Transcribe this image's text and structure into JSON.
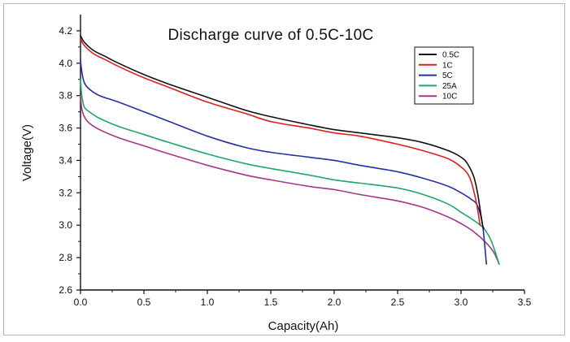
{
  "chart_data": {
    "type": "line",
    "title": "Discharge curve of 0.5C-10C",
    "xlabel": "Capacity(Ah)",
    "ylabel": "Voltage(V)",
    "xlim": [
      0,
      3.5
    ],
    "ylim": [
      2.6,
      4.3
    ],
    "xticks": [
      "0.0",
      "0.5",
      "1.0",
      "1.5",
      "2.0",
      "2.5",
      "3.0",
      "3.5"
    ],
    "yticks": [
      "2.6",
      "2.8",
      "3.0",
      "3.2",
      "3.4",
      "3.6",
      "3.8",
      "4.0",
      "4.2"
    ],
    "legend_position": "top-right",
    "series": [
      {
        "name": "0.5C",
        "color": "#111111",
        "x": [
          0,
          0.03,
          0.1,
          0.2,
          0.3,
          0.5,
          0.7,
          1.0,
          1.3,
          1.5,
          1.8,
          2.0,
          2.2,
          2.5,
          2.7,
          2.9,
          3.0,
          3.05,
          3.1,
          3.13,
          3.15,
          3.17,
          3.18
        ],
        "y": [
          4.17,
          4.13,
          4.08,
          4.04,
          4.0,
          3.93,
          3.87,
          3.79,
          3.71,
          3.67,
          3.62,
          3.59,
          3.57,
          3.54,
          3.51,
          3.46,
          3.42,
          3.38,
          3.3,
          3.2,
          3.1,
          3.0,
          2.98
        ]
      },
      {
        "name": "1C",
        "color": "#e01e1e",
        "x": [
          0,
          0.03,
          0.1,
          0.2,
          0.3,
          0.5,
          0.7,
          1.0,
          1.3,
          1.5,
          1.8,
          2.0,
          2.2,
          2.5,
          2.7,
          2.9,
          3.0,
          3.05,
          3.08,
          3.11,
          3.13,
          3.15
        ],
        "y": [
          4.15,
          4.11,
          4.06,
          4.02,
          3.98,
          3.91,
          3.85,
          3.76,
          3.69,
          3.64,
          3.6,
          3.57,
          3.55,
          3.5,
          3.46,
          3.41,
          3.36,
          3.32,
          3.27,
          3.18,
          3.1,
          3.0
        ]
      },
      {
        "name": "5C",
        "color": "#2530a8",
        "x": [
          0,
          0.01,
          0.03,
          0.07,
          0.15,
          0.3,
          0.5,
          0.7,
          1.0,
          1.3,
          1.5,
          1.8,
          2.0,
          2.2,
          2.5,
          2.7,
          2.9,
          3.0,
          3.08,
          3.13,
          3.17,
          3.2
        ],
        "y": [
          4.02,
          3.95,
          3.88,
          3.84,
          3.8,
          3.76,
          3.7,
          3.64,
          3.55,
          3.48,
          3.45,
          3.42,
          3.4,
          3.37,
          3.33,
          3.29,
          3.24,
          3.2,
          3.16,
          3.12,
          3.0,
          2.76
        ]
      },
      {
        "name": "25A",
        "color": "#1ea868",
        "x": [
          0,
          0.01,
          0.03,
          0.07,
          0.15,
          0.3,
          0.5,
          0.7,
          1.0,
          1.3,
          1.5,
          1.8,
          2.0,
          2.2,
          2.5,
          2.7,
          2.9,
          3.0,
          3.1,
          3.18,
          3.24,
          3.3
        ],
        "y": [
          3.9,
          3.8,
          3.73,
          3.7,
          3.66,
          3.61,
          3.56,
          3.51,
          3.44,
          3.38,
          3.35,
          3.31,
          3.28,
          3.26,
          3.23,
          3.19,
          3.13,
          3.08,
          3.03,
          2.98,
          2.9,
          2.76
        ]
      },
      {
        "name": "10C",
        "color": "#a8348e",
        "x": [
          0,
          0.01,
          0.03,
          0.07,
          0.15,
          0.3,
          0.5,
          0.7,
          1.0,
          1.3,
          1.5,
          1.8,
          2.0,
          2.2,
          2.5,
          2.7,
          2.9,
          3.0,
          3.1,
          3.2,
          3.26,
          3.3
        ],
        "y": [
          3.8,
          3.72,
          3.67,
          3.63,
          3.59,
          3.54,
          3.49,
          3.44,
          3.37,
          3.31,
          3.28,
          3.24,
          3.22,
          3.19,
          3.15,
          3.11,
          3.05,
          3.01,
          2.96,
          2.89,
          2.83,
          2.76
        ]
      }
    ]
  }
}
